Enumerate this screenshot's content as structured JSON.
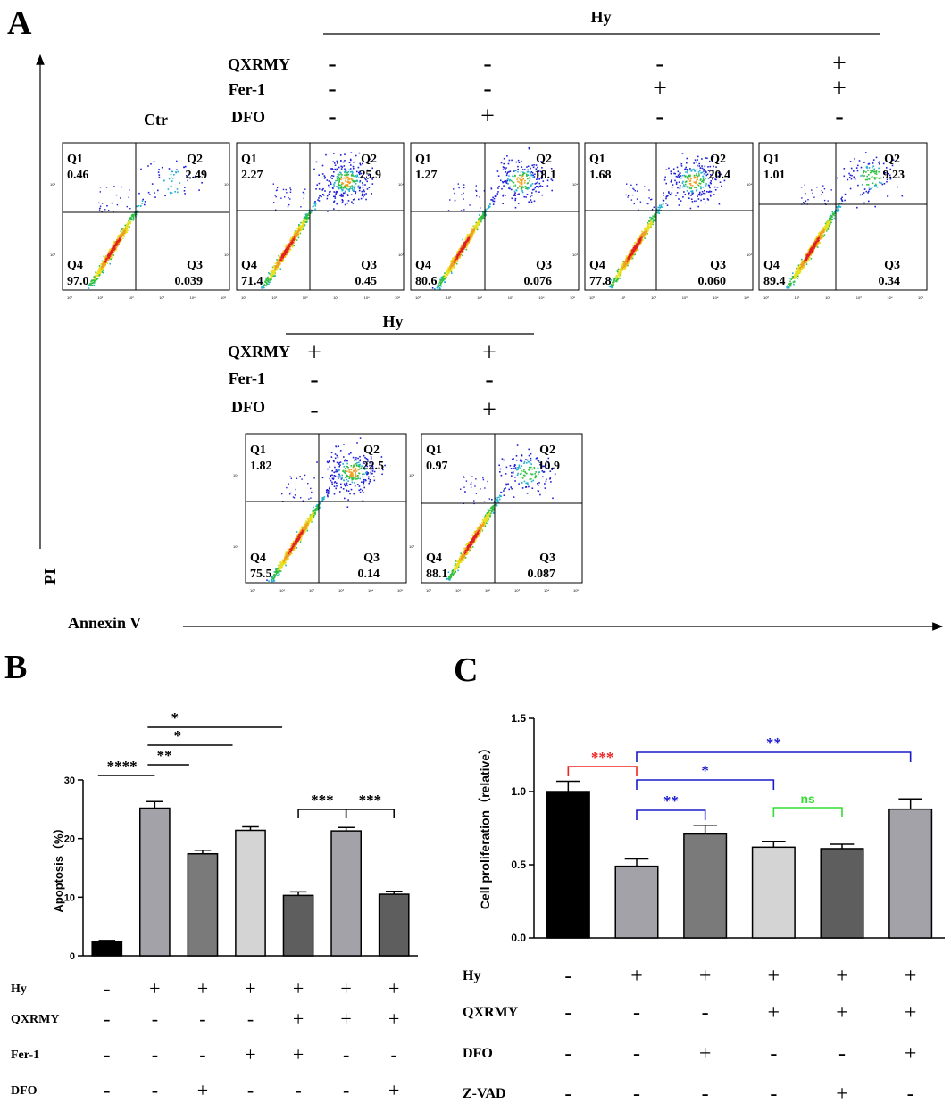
{
  "panel_a": {
    "letter": "A",
    "hy_header": "Hy",
    "ctr_label": "Ctr",
    "row_labels": [
      "QXRMY",
      "Fer-1",
      "DFO"
    ],
    "top_signs": [
      [
        "-",
        "-",
        "-"
      ],
      [
        "-",
        "-",
        "+"
      ],
      [
        "-",
        "+",
        "-"
      ],
      [
        "+",
        "+",
        "-"
      ]
    ],
    "bottom_signs": [
      [
        "+",
        "-",
        "-"
      ],
      [
        "+",
        "-",
        "+"
      ]
    ],
    "y_axis_label": "PI",
    "x_axis_label": "Annexin V",
    "quadrant_names": [
      "Q1",
      "Q2",
      "Q4",
      "Q3"
    ],
    "plots": [
      {
        "q1": "0.46",
        "q2": "2.49",
        "q4": "97.0",
        "q3": "0.039"
      },
      {
        "q1": "2.27",
        "q2": "25.9",
        "q4": "71.4",
        "q3": "0.45"
      },
      {
        "q1": "1.27",
        "q2": "18.1",
        "q4": "80.6",
        "q3": "0.076"
      },
      {
        "q1": "1.68",
        "q2": "20.4",
        "q4": "77.8",
        "q3": "0.060"
      },
      {
        "q1": "1.01",
        "q2": "9.23",
        "q4": "89.4",
        "q3": "0.34"
      },
      {
        "q1": "1.82",
        "q2": "22.5",
        "q4": "75.5",
        "q3": "0.14"
      },
      {
        "q1": "0.97",
        "q2": "10.9",
        "q4": "88.1",
        "q3": "0.087"
      }
    ],
    "tick_labels": [
      "10⁰",
      "10¹",
      "10²",
      "10³",
      "10⁴",
      "10⁵"
    ]
  },
  "chart_data": [
    {
      "type": "bar",
      "panel": "B",
      "title": "",
      "xlabel": "",
      "ylabel": "Apoptosis（%）",
      "ylim": [
        0,
        30
      ],
      "yticks": [
        "0",
        "10",
        "20",
        "30"
      ],
      "categories": [
        "Ctr",
        "Hy",
        "Hy+DFO",
        "Hy+Fer-1",
        "Hy+QXRMY+Fer-1",
        "Hy+QXRMY",
        "Hy+QXRMY+DFO"
      ],
      "values": [
        2.4,
        25.2,
        17.4,
        21.4,
        10.3,
        21.3,
        10.5
      ],
      "errors": [
        0.2,
        1.1,
        0.6,
        0.6,
        0.6,
        0.6,
        0.5
      ],
      "colors": [
        "#000000",
        "#a3a2a8",
        "#7a7a7a",
        "#d4d4d4",
        "#5e5e5e",
        "#a3a2a8",
        "#5e5e5e"
      ],
      "significance": [
        {
          "from": 0,
          "to": 1,
          "label": "****",
          "y": 26.2
        },
        {
          "from": 1,
          "to": 2,
          "label": "**",
          "y": 26.2
        },
        {
          "from": 1,
          "to": 3,
          "label": "*",
          "y": 26.2
        },
        {
          "from": 1,
          "to": 4,
          "label": "*",
          "y": 26.2
        },
        {
          "from": 4,
          "to": 5,
          "label": "***",
          "y": 22.0
        },
        {
          "from": 5,
          "to": 6,
          "label": "***",
          "y": 22.0
        }
      ],
      "condition_rows": [
        {
          "label": "Hy",
          "signs": [
            "-",
            "+",
            "+",
            "+",
            "+",
            "+",
            "+"
          ]
        },
        {
          "label": "QXRMY",
          "signs": [
            "-",
            "-",
            "-",
            "-",
            "+",
            "+",
            "+"
          ]
        },
        {
          "label": "Fer-1",
          "signs": [
            "-",
            "-",
            "-",
            "+",
            "+",
            "-",
            "-"
          ]
        },
        {
          "label": "DFO",
          "signs": [
            "-",
            "-",
            "+",
            "-",
            "-",
            "-",
            "+"
          ]
        }
      ],
      "letter": "B"
    },
    {
      "type": "bar",
      "panel": "C",
      "title": "",
      "xlabel": "",
      "ylabel": "Cell proliferation（relative）",
      "ylim": [
        0,
        1.5
      ],
      "yticks": [
        "0.0",
        "0.5",
        "1.0",
        "1.5"
      ],
      "categories": [
        "Ctr",
        "Hy",
        "Hy+DFO",
        "Hy+QXRMY",
        "Hy+QXRMY+Z-VAD",
        "Hy+QXRMY+DFO"
      ],
      "values": [
        1.0,
        0.49,
        0.71,
        0.62,
        0.61,
        0.88
      ],
      "errors": [
        0.07,
        0.05,
        0.06,
        0.04,
        0.03,
        0.07
      ],
      "colors": [
        "#000000",
        "#a3a2a8",
        "#7a7a7a",
        "#d4d4d4",
        "#5e5e5e",
        "#a3a2a8"
      ],
      "significance": [
        {
          "from": 0,
          "to": 1,
          "label": "***",
          "y": 1.1,
          "color": "#ee2222"
        },
        {
          "from": 1,
          "to": 5,
          "label": "**",
          "y": 1.1,
          "color": "#1a1acc"
        },
        {
          "from": 1,
          "to": 3,
          "label": "*",
          "y": 1.0,
          "color": "#1a1acc"
        },
        {
          "from": 1,
          "to": 2,
          "label": "**",
          "y": 0.76,
          "color": "#1a1acc"
        },
        {
          "from": 3,
          "to": 4,
          "label": "ns",
          "y": 0.76,
          "color": "#33dd33"
        }
      ],
      "condition_rows": [
        {
          "label": "Hy",
          "signs": [
            "-",
            "+",
            "+",
            "+",
            "+",
            "+"
          ]
        },
        {
          "label": "QXRMY",
          "signs": [
            "-",
            "-",
            "-",
            "+",
            "+",
            "+"
          ]
        },
        {
          "label": "DFO",
          "signs": [
            "-",
            "-",
            "+",
            "-",
            "-",
            "+"
          ]
        },
        {
          "label": "Z-VAD",
          "signs": [
            "-",
            "-",
            "-",
            "-",
            "+",
            "-"
          ]
        }
      ],
      "letter": "C"
    }
  ]
}
